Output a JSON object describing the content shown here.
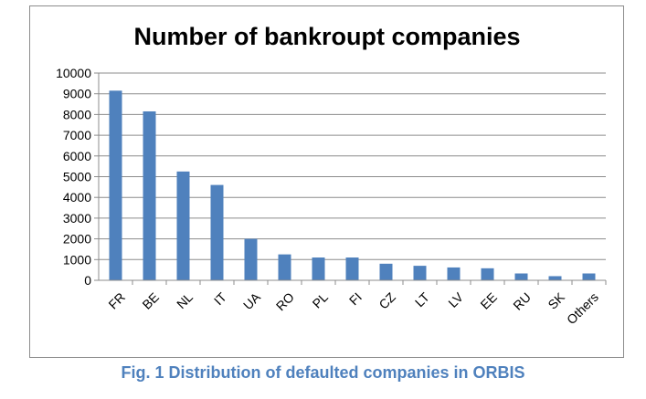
{
  "caption": "Fig. 1 Distribution of defaulted companies in ORBIS",
  "colors": {
    "bar": "#4f81bd",
    "grid": "#8c8c8c",
    "axis": "#8c8c8c",
    "caption": "#4f81bd"
  },
  "chart_data": {
    "type": "bar",
    "title": "Number of bankroupt companies",
    "xlabel": "",
    "ylabel": "",
    "categories": [
      "FR",
      "BE",
      "NL",
      "IT",
      "UA",
      "RO",
      "PL",
      "FI",
      "CZ",
      "LT",
      "LV",
      "EE",
      "RU",
      "SK",
      "Others"
    ],
    "values": [
      9150,
      8150,
      5250,
      4600,
      2000,
      1250,
      1100,
      1100,
      800,
      700,
      620,
      580,
      330,
      200,
      330
    ],
    "ylim": [
      0,
      10000
    ],
    "yticks": [
      "0",
      "1000",
      "2000",
      "3000",
      "4000",
      "5000",
      "6000",
      "7000",
      "8000",
      "9000",
      "10000"
    ],
    "grid": true,
    "legend": "none"
  }
}
